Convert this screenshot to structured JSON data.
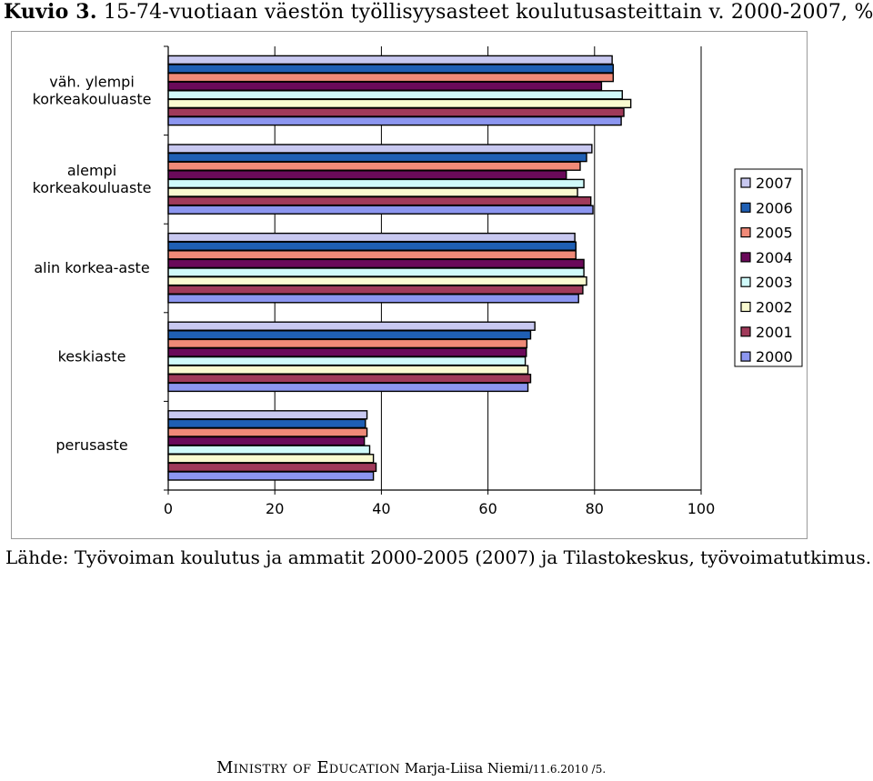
{
  "header": {
    "figure_label": "Kuvio 3.",
    "title": "15-74-vuotiaan väestön työllisyysasteet koulutusasteittain v. 2000-2007, %"
  },
  "source": "Lähde: Työvoiman koulutus ja ammatit 2000-2005 (2007) ja Tilastokeskus, työvoimatutkimus.",
  "footer": {
    "ministry": "Ministry of Education",
    "author": "Marja-Liisa Niemi",
    "date": "/11.6.2010 /5."
  },
  "chart_data": {
    "type": "bar",
    "orientation": "horizontal",
    "categories": [
      "väh. ylempi korkeakouluaste",
      "alempi korkeakouluaste",
      "alin korkea-aste",
      "keskiaste",
      "perusaste"
    ],
    "category_lines": [
      [
        "väh. ylempi",
        "korkeakouluaste"
      ],
      [
        "alempi",
        "korkeakouluaste"
      ],
      [
        "alin korkea-aste"
      ],
      [
        "keskiaste"
      ],
      [
        "perusaste"
      ]
    ],
    "series": [
      {
        "name": "2007",
        "color": "#c8c8f0",
        "values": [
          83.3,
          79.5,
          76.3,
          68.8,
          37.3
        ]
      },
      {
        "name": "2006",
        "color": "#1f5fb4",
        "values": [
          83.5,
          78.5,
          76.5,
          68.0,
          37.0
        ]
      },
      {
        "name": "2005",
        "color": "#f08a78",
        "values": [
          83.5,
          77.3,
          76.5,
          67.3,
          37.3
        ]
      },
      {
        "name": "2004",
        "color": "#6a0a5a",
        "values": [
          81.3,
          74.7,
          78.0,
          67.2,
          36.8
        ]
      },
      {
        "name": "2003",
        "color": "#d0fafa",
        "values": [
          85.2,
          78.0,
          78.0,
          67.0,
          37.8
        ]
      },
      {
        "name": "2002",
        "color": "#fafad0",
        "values": [
          86.8,
          76.8,
          78.5,
          67.5,
          38.5
        ]
      },
      {
        "name": "2001",
        "color": "#a03a5a",
        "values": [
          85.5,
          79.3,
          77.8,
          68.0,
          39.0
        ]
      },
      {
        "name": "2000",
        "color": "#8c96f0",
        "values": [
          85.0,
          79.7,
          77.0,
          67.5,
          38.5
        ]
      }
    ],
    "xlim": [
      0,
      100
    ],
    "xticks": [
      "0",
      "20",
      "40",
      "60",
      "80",
      "100"
    ],
    "grid": "vertical",
    "legend_position": "right"
  }
}
